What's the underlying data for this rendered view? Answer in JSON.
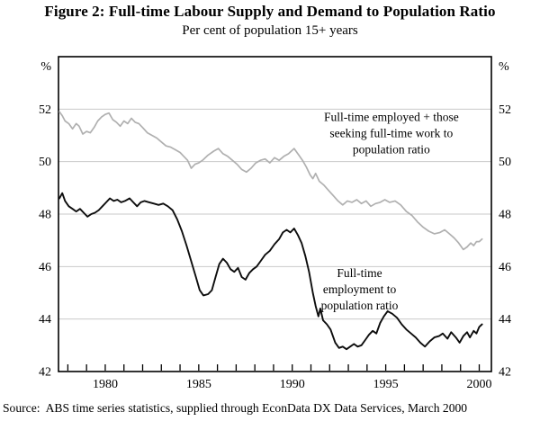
{
  "figure": {
    "title": "Figure 2: Full-time Labour Supply and Demand to Population Ratio",
    "subtitle": "Per cent of population 15+ years",
    "source": "Source:  ABS time series statistics, supplied through EconData DX Data Services, March 2000"
  },
  "chart_data": {
    "type": "line",
    "title": "Figure 2: Full-time Labour Supply and Demand to Population Ratio",
    "subtitle": "Per cent of population 15+ years",
    "unit_label": "%",
    "xlim": [
      1977.5,
      2000.65
    ],
    "ylim": [
      42,
      54
    ],
    "yticks": [
      42,
      44,
      46,
      48,
      50,
      52
    ],
    "gridlines": [
      44,
      46,
      48,
      50,
      52
    ],
    "xticks_labeled": [
      1980,
      1985,
      1990,
      1995,
      2000
    ],
    "xticks_minor": [
      1978,
      1979,
      1980,
      1981,
      1982,
      1983,
      1984,
      1985,
      1986,
      1987,
      1988,
      1989,
      1990,
      1991,
      1992,
      1993,
      1994,
      1995,
      1996,
      1997,
      1998,
      1999,
      2000
    ],
    "grid_on": true,
    "legend_position": "in-plot annotations",
    "colors": {
      "axis": "#000000",
      "grid": "#c9c9c9"
    },
    "annotations": [
      {
        "lines": [
          "Full-time employed + those",
          "seeking full-time work to",
          "population ratio"
        ],
        "x": 1995.3,
        "y": 51.55,
        "series": "supply"
      },
      {
        "lines": [
          "Full-time",
          "employment to",
          "population ratio"
        ],
        "x": 1993.6,
        "y": 45.6,
        "series": "employment"
      }
    ],
    "series": [
      {
        "name": "Full-time employed + those seeking full-time work to population ratio",
        "color": "#b0b0b0",
        "width": 1.7,
        "points": [
          [
            1977.55,
            51.9
          ],
          [
            1977.7,
            51.75
          ],
          [
            1977.85,
            51.55
          ],
          [
            1978.05,
            51.45
          ],
          [
            1978.25,
            51.25
          ],
          [
            1978.45,
            51.45
          ],
          [
            1978.6,
            51.35
          ],
          [
            1978.8,
            51.05
          ],
          [
            1979.0,
            51.15
          ],
          [
            1979.2,
            51.1
          ],
          [
            1979.4,
            51.3
          ],
          [
            1979.6,
            51.55
          ],
          [
            1979.8,
            51.7
          ],
          [
            1980.0,
            51.8
          ],
          [
            1980.2,
            51.85
          ],
          [
            1980.4,
            51.6
          ],
          [
            1980.6,
            51.5
          ],
          [
            1980.8,
            51.35
          ],
          [
            1981.0,
            51.55
          ],
          [
            1981.2,
            51.45
          ],
          [
            1981.4,
            51.65
          ],
          [
            1981.6,
            51.5
          ],
          [
            1981.8,
            51.45
          ],
          [
            1982.0,
            51.3
          ],
          [
            1982.25,
            51.1
          ],
          [
            1982.5,
            51.0
          ],
          [
            1982.75,
            50.9
          ],
          [
            1983.0,
            50.75
          ],
          [
            1983.25,
            50.6
          ],
          [
            1983.5,
            50.55
          ],
          [
            1983.75,
            50.45
          ],
          [
            1984.0,
            50.35
          ],
          [
            1984.2,
            50.2
          ],
          [
            1984.4,
            50.05
          ],
          [
            1984.6,
            49.75
          ],
          [
            1984.8,
            49.9
          ],
          [
            1985.0,
            49.95
          ],
          [
            1985.2,
            50.05
          ],
          [
            1985.5,
            50.25
          ],
          [
            1985.8,
            50.4
          ],
          [
            1986.05,
            50.5
          ],
          [
            1986.3,
            50.3
          ],
          [
            1986.55,
            50.2
          ],
          [
            1986.8,
            50.05
          ],
          [
            1987.05,
            49.9
          ],
          [
            1987.3,
            49.7
          ],
          [
            1987.55,
            49.6
          ],
          [
            1987.8,
            49.75
          ],
          [
            1988.05,
            49.95
          ],
          [
            1988.3,
            50.05
          ],
          [
            1988.55,
            50.1
          ],
          [
            1988.8,
            49.95
          ],
          [
            1989.05,
            50.15
          ],
          [
            1989.3,
            50.05
          ],
          [
            1989.55,
            50.2
          ],
          [
            1989.8,
            50.3
          ],
          [
            1990.1,
            50.5
          ],
          [
            1990.35,
            50.25
          ],
          [
            1990.55,
            50.05
          ],
          [
            1990.75,
            49.8
          ],
          [
            1990.95,
            49.5
          ],
          [
            1991.1,
            49.35
          ],
          [
            1991.25,
            49.55
          ],
          [
            1991.45,
            49.25
          ],
          [
            1991.7,
            49.1
          ],
          [
            1991.95,
            48.9
          ],
          [
            1992.2,
            48.7
          ],
          [
            1992.45,
            48.5
          ],
          [
            1992.7,
            48.35
          ],
          [
            1992.95,
            48.5
          ],
          [
            1993.2,
            48.45
          ],
          [
            1993.45,
            48.55
          ],
          [
            1993.7,
            48.4
          ],
          [
            1993.95,
            48.5
          ],
          [
            1994.2,
            48.3
          ],
          [
            1994.45,
            48.4
          ],
          [
            1994.7,
            48.45
          ],
          [
            1994.95,
            48.55
          ],
          [
            1995.2,
            48.45
          ],
          [
            1995.5,
            48.5
          ],
          [
            1995.8,
            48.35
          ],
          [
            1996.1,
            48.1
          ],
          [
            1996.4,
            47.95
          ],
          [
            1996.7,
            47.7
          ],
          [
            1997.0,
            47.5
          ],
          [
            1997.3,
            47.35
          ],
          [
            1997.6,
            47.25
          ],
          [
            1997.9,
            47.3
          ],
          [
            1998.15,
            47.4
          ],
          [
            1998.4,
            47.25
          ],
          [
            1998.65,
            47.1
          ],
          [
            1998.9,
            46.9
          ],
          [
            1999.15,
            46.65
          ],
          [
            1999.35,
            46.75
          ],
          [
            1999.55,
            46.9
          ],
          [
            1999.7,
            46.8
          ],
          [
            1999.85,
            46.95
          ],
          [
            2000.0,
            46.95
          ],
          [
            2000.15,
            47.05
          ]
        ]
      },
      {
        "name": "Full-time employment to population ratio",
        "color": "#0d0d0d",
        "width": 1.9,
        "points": [
          [
            1977.55,
            48.6
          ],
          [
            1977.7,
            48.8
          ],
          [
            1977.85,
            48.5
          ],
          [
            1978.05,
            48.3
          ],
          [
            1978.25,
            48.2
          ],
          [
            1978.45,
            48.1
          ],
          [
            1978.65,
            48.2
          ],
          [
            1978.85,
            48.05
          ],
          [
            1979.05,
            47.9
          ],
          [
            1979.25,
            48.0
          ],
          [
            1979.45,
            48.05
          ],
          [
            1979.65,
            48.15
          ],
          [
            1979.85,
            48.3
          ],
          [
            1980.05,
            48.45
          ],
          [
            1980.25,
            48.6
          ],
          [
            1980.45,
            48.5
          ],
          [
            1980.65,
            48.55
          ],
          [
            1980.85,
            48.45
          ],
          [
            1981.05,
            48.5
          ],
          [
            1981.3,
            48.6
          ],
          [
            1981.5,
            48.45
          ],
          [
            1981.7,
            48.3
          ],
          [
            1981.9,
            48.45
          ],
          [
            1982.1,
            48.5
          ],
          [
            1982.35,
            48.45
          ],
          [
            1982.6,
            48.4
          ],
          [
            1982.85,
            48.35
          ],
          [
            1983.1,
            48.4
          ],
          [
            1983.35,
            48.3
          ],
          [
            1983.6,
            48.15
          ],
          [
            1983.85,
            47.8
          ],
          [
            1984.1,
            47.35
          ],
          [
            1984.35,
            46.8
          ],
          [
            1984.6,
            46.2
          ],
          [
            1984.85,
            45.6
          ],
          [
            1985.05,
            45.1
          ],
          [
            1985.25,
            44.9
          ],
          [
            1985.5,
            44.95
          ],
          [
            1985.7,
            45.1
          ],
          [
            1985.9,
            45.6
          ],
          [
            1986.1,
            46.1
          ],
          [
            1986.3,
            46.3
          ],
          [
            1986.5,
            46.15
          ],
          [
            1986.7,
            45.9
          ],
          [
            1986.9,
            45.8
          ],
          [
            1987.1,
            45.95
          ],
          [
            1987.3,
            45.6
          ],
          [
            1987.5,
            45.5
          ],
          [
            1987.7,
            45.75
          ],
          [
            1987.9,
            45.9
          ],
          [
            1988.1,
            46.0
          ],
          [
            1988.3,
            46.2
          ],
          [
            1988.55,
            46.45
          ],
          [
            1988.8,
            46.6
          ],
          [
            1989.05,
            46.85
          ],
          [
            1989.3,
            47.05
          ],
          [
            1989.5,
            47.3
          ],
          [
            1989.7,
            47.4
          ],
          [
            1989.9,
            47.3
          ],
          [
            1990.1,
            47.45
          ],
          [
            1990.3,
            47.2
          ],
          [
            1990.5,
            46.9
          ],
          [
            1990.7,
            46.4
          ],
          [
            1990.9,
            45.8
          ],
          [
            1991.1,
            45.0
          ],
          [
            1991.25,
            44.5
          ],
          [
            1991.4,
            44.1
          ],
          [
            1991.5,
            44.4
          ],
          [
            1991.65,
            43.95
          ],
          [
            1991.85,
            43.8
          ],
          [
            1992.05,
            43.6
          ],
          [
            1992.3,
            43.1
          ],
          [
            1992.5,
            42.9
          ],
          [
            1992.7,
            42.95
          ],
          [
            1992.9,
            42.85
          ],
          [
            1993.1,
            42.95
          ],
          [
            1993.3,
            43.05
          ],
          [
            1993.5,
            42.95
          ],
          [
            1993.7,
            43.0
          ],
          [
            1993.9,
            43.2
          ],
          [
            1994.1,
            43.4
          ],
          [
            1994.3,
            43.55
          ],
          [
            1994.5,
            43.45
          ],
          [
            1994.7,
            43.85
          ],
          [
            1994.9,
            44.1
          ],
          [
            1995.1,
            44.3
          ],
          [
            1995.35,
            44.2
          ],
          [
            1995.6,
            44.05
          ],
          [
            1995.85,
            43.8
          ],
          [
            1996.1,
            43.6
          ],
          [
            1996.35,
            43.45
          ],
          [
            1996.6,
            43.3
          ],
          [
            1996.85,
            43.1
          ],
          [
            1997.1,
            42.95
          ],
          [
            1997.35,
            43.15
          ],
          [
            1997.6,
            43.3
          ],
          [
            1997.85,
            43.35
          ],
          [
            1998.05,
            43.45
          ],
          [
            1998.3,
            43.25
          ],
          [
            1998.5,
            43.5
          ],
          [
            1998.75,
            43.3
          ],
          [
            1998.95,
            43.1
          ],
          [
            1999.15,
            43.35
          ],
          [
            1999.35,
            43.5
          ],
          [
            1999.5,
            43.3
          ],
          [
            1999.7,
            43.55
          ],
          [
            1999.85,
            43.45
          ],
          [
            2000.0,
            43.7
          ],
          [
            2000.15,
            43.8
          ]
        ]
      }
    ]
  }
}
